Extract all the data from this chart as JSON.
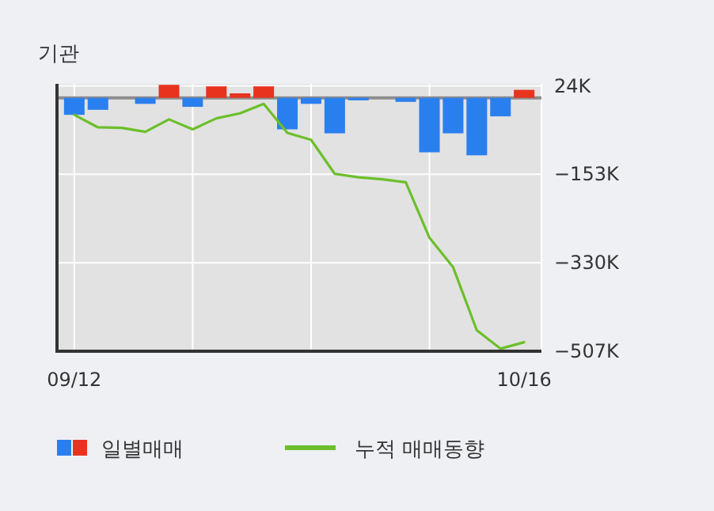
{
  "chart_data": {
    "type": "bar",
    "title": "기관",
    "categories": [
      "09/12",
      null,
      null,
      null,
      null,
      null,
      null,
      null,
      null,
      null,
      null,
      null,
      null,
      null,
      null,
      null,
      null,
      null,
      null,
      "10/16"
    ],
    "ylim": [
      -507000,
      28000
    ],
    "yticks": [
      {
        "value": 24000,
        "label": "24K"
      },
      {
        "value": -153000,
        "label": "−153K"
      },
      {
        "value": -330000,
        "label": "−330K"
      },
      {
        "value": -507000,
        "label": "−507K"
      }
    ],
    "grid": true,
    "legend": "bottom",
    "ref_lines": [
      {
        "axis": "y",
        "value": 0,
        "color": "#8c8c8c"
      }
    ],
    "series": [
      {
        "name": "일별매매",
        "values": [
          -34000,
          -24000,
          0,
          -12000,
          26000,
          -18000,
          23000,
          9000,
          23000,
          -63000,
          -12000,
          -71000,
          -5000,
          0,
          -8000,
          -109000,
          -71000,
          -115000,
          -37000,
          16000
        ],
        "colors": [
          "#2a7fef",
          "#2a7fef",
          "#2a7fef",
          "#2a7fef",
          "#e8331f",
          "#2a7fef",
          "#e8331f",
          "#e8331f",
          "#e8331f",
          "#2a7fef",
          "#2a7fef",
          "#2a7fef",
          "#2a7fef",
          "#2a7fef",
          "#2a7fef",
          "#2a7fef",
          "#2a7fef",
          "#2a7fef",
          "#2a7fef",
          "#e8331f"
        ]
      },
      {
        "name": "누적 매매동향",
        "type": "line",
        "color": "#6cbf2a",
        "values": [
          -34000,
          -59000,
          -60000,
          -68000,
          -43000,
          -63000,
          -41000,
          -31000,
          -12000,
          -70000,
          -84000,
          -152000,
          -159000,
          -163000,
          -169000,
          -280000,
          -339000,
          -465000,
          -502000,
          -489000
        ]
      }
    ]
  }
}
